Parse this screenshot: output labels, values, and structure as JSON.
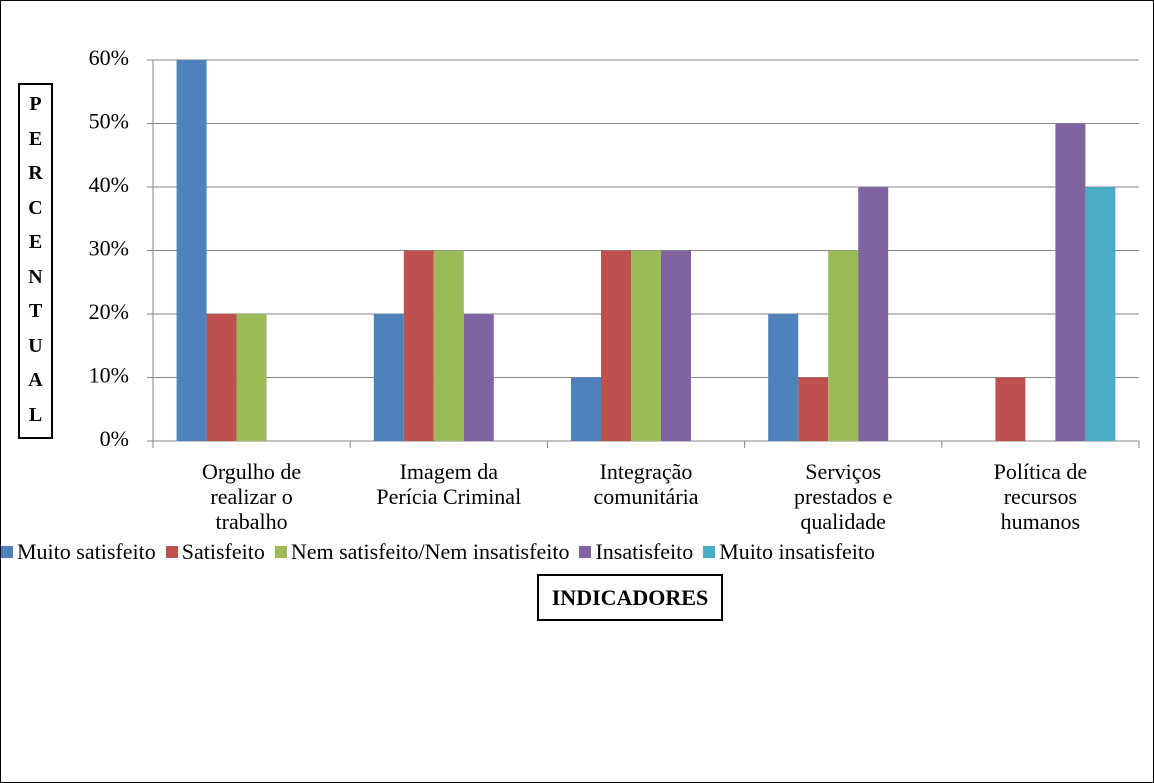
{
  "chart_data": {
    "type": "bar",
    "x_label": "INDICADORES",
    "y_label": "PERCENTUAL",
    "categories": [
      "Orgulho de\nrealizar o\ntrabalho",
      "Imagem da\nPerícia Criminal",
      "Integração\ncomunitária",
      "Serviços\nprestados e\nqualidade",
      "Política de\nrecursos\nhumanos"
    ],
    "series": [
      {
        "name": "Muito satisfeito",
        "color": "#4f81bd",
        "values": [
          60,
          20,
          10,
          20,
          0
        ]
      },
      {
        "name": "Satisfeito",
        "color": "#c0504d",
        "values": [
          20,
          30,
          30,
          10,
          10
        ]
      },
      {
        "name": "Nem satisfeito/Nem insatisfeito",
        "color": "#9bbb59",
        "values": [
          20,
          30,
          30,
          30,
          0
        ]
      },
      {
        "name": "Insatisfeito",
        "color": "#8064a2",
        "values": [
          0,
          20,
          30,
          40,
          50
        ]
      },
      {
        "name": "Muito insatisfeito",
        "color": "#4bacc6",
        "values": [
          0,
          0,
          0,
          0,
          40
        ]
      }
    ],
    "ylim": [
      0,
      60
    ],
    "yticks": [
      {
        "value": 0,
        "label": "0%"
      },
      {
        "value": 10,
        "label": "10%"
      },
      {
        "value": 20,
        "label": "20%"
      },
      {
        "value": 30,
        "label": "30%"
      },
      {
        "value": 40,
        "label": "40%"
      },
      {
        "value": 50,
        "label": "50%"
      },
      {
        "value": 60,
        "label": "60%"
      }
    ],
    "grid": true,
    "legend": "bottom"
  }
}
